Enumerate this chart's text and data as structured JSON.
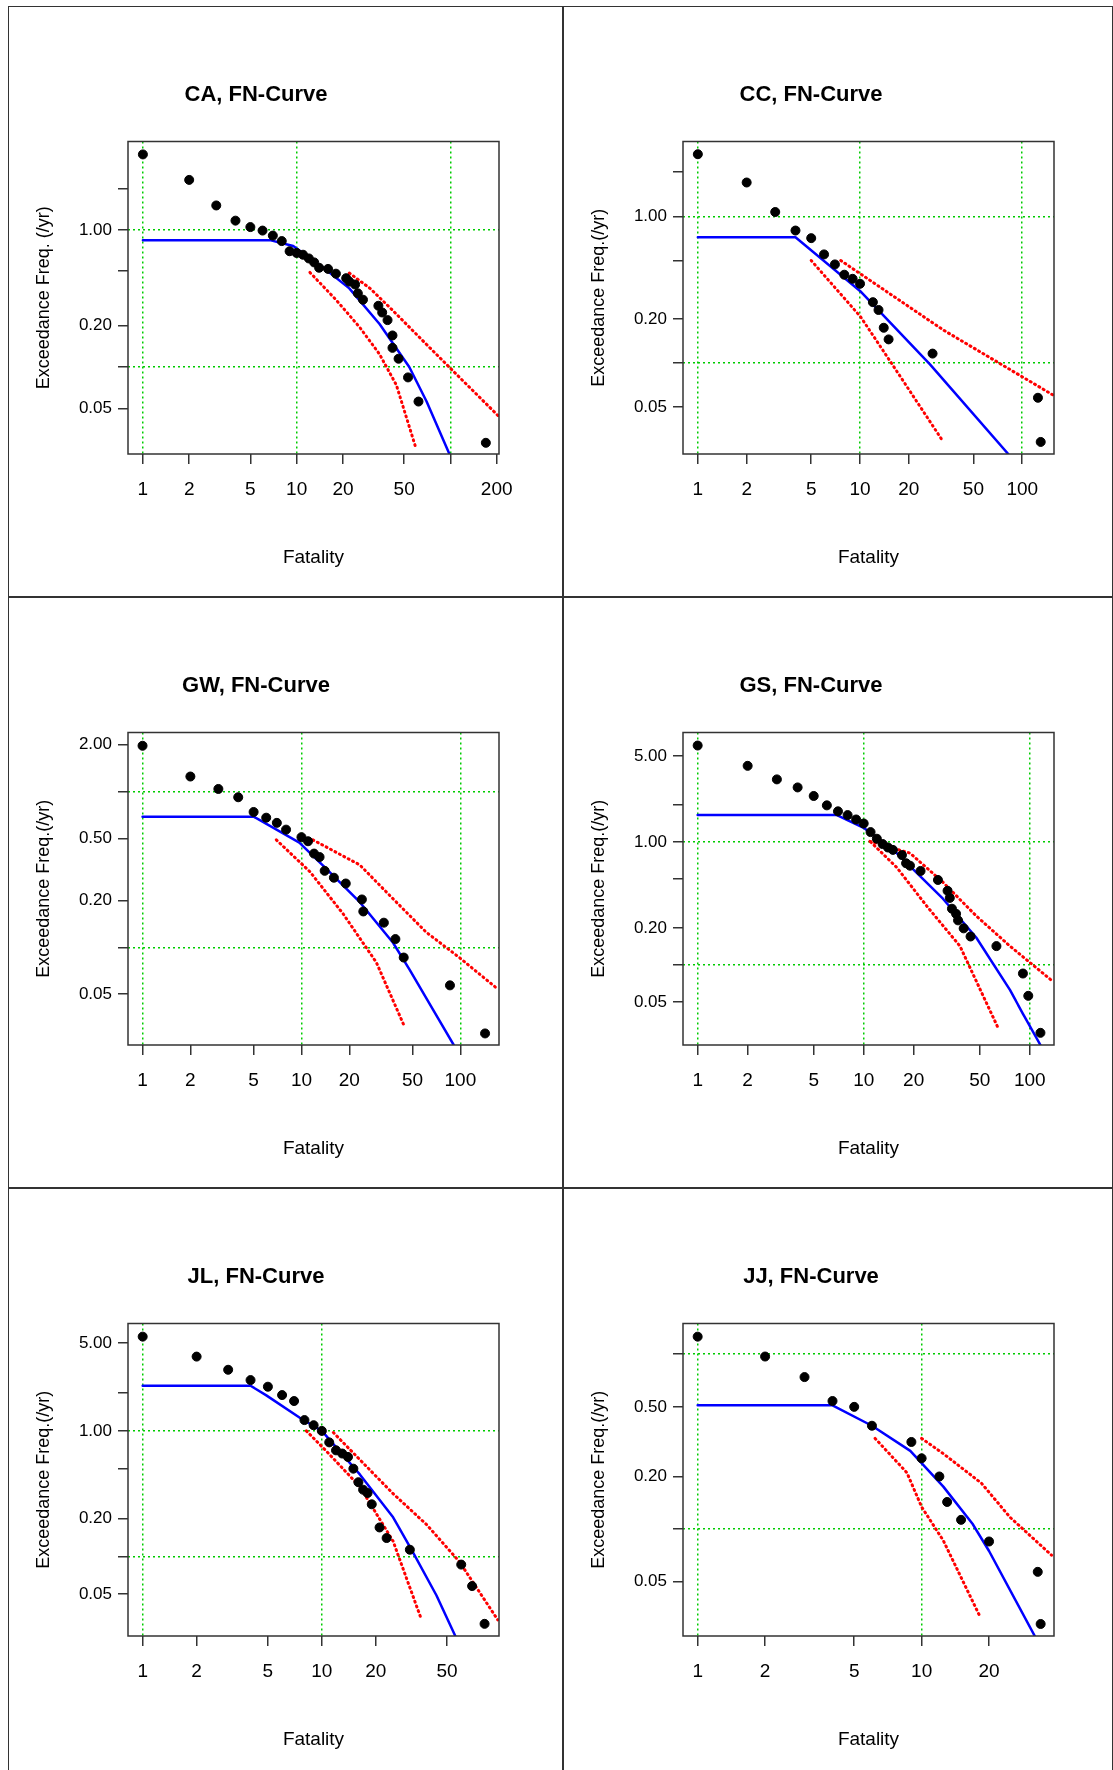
{
  "chart_data": [
    {
      "type": "scatter",
      "title": "CA, FN-Curve",
      "xlabel": "Fatality",
      "ylabel": "Exceedance Freq. (/yr)",
      "log": "xy",
      "grid": true,
      "xlim": [
        0.8,
        207
      ],
      "ylim": [
        0.0232,
        4.43
      ],
      "xticks": [
        1,
        2,
        5,
        10,
        20,
        50,
        {
          "value": 100,
          "label": null
        },
        200
      ],
      "yticks": [
        {
          "value": 0.05,
          "label": "0.05"
        },
        {
          "value": 0.1,
          "label": null
        },
        {
          "value": 0.2,
          "label": "0.20"
        },
        {
          "value": 0.5,
          "label": null
        },
        {
          "value": 1,
          "label": "1.00"
        },
        {
          "value": 2,
          "label": null
        }
      ],
      "series": [
        {
          "type": "scatter",
          "color": "#000000",
          "x": [
            1,
            2,
            3,
            4,
            5,
            6,
            7,
            8,
            9,
            10,
            11,
            12,
            13,
            14,
            16,
            18,
            21,
            22,
            24,
            25,
            27,
            34,
            36,
            39,
            42,
            42,
            46,
            53,
            62,
            170
          ],
          "values": [
            3.56,
            2.32,
            1.51,
            1.17,
            1.05,
            0.99,
            0.91,
            0.83,
            0.7,
            0.68,
            0.66,
            0.62,
            0.58,
            0.53,
            0.52,
            0.48,
            0.445,
            0.42,
            0.4,
            0.345,
            0.31,
            0.28,
            0.25,
            0.22,
            0.17,
            0.138,
            0.115,
            0.084,
            0.056,
            0.028
          ]
        },
        {
          "type": "line",
          "color": "#0000ff",
          "line_style": "solid",
          "x": [
            1,
            6.8,
            9.5,
            15.6,
            22,
            34.6,
            54,
            70,
            98.5
          ],
          "values": [
            0.84,
            0.84,
            0.765,
            0.51,
            0.375,
            0.206,
            0.1,
            0.056,
            0.0232
          ]
        },
        {
          "type": "line",
          "color": "#ff0000",
          "line_style": "dotted",
          "x": [
            22,
            30,
            42,
            70,
            99,
            205
          ],
          "values": [
            0.485,
            0.375,
            0.26,
            0.146,
            0.099,
            0.044
          ]
        },
        {
          "type": "line",
          "color": "#ff0000",
          "line_style": "dotted",
          "x": [
            12.2,
            18,
            25.7,
            34.6,
            44.5,
            59.4
          ],
          "values": [
            0.49,
            0.31,
            0.195,
            0.124,
            0.074,
            0.026
          ]
        }
      ]
    },
    {
      "type": "scatter",
      "title": "CC, FN-Curve",
      "xlabel": "Fatality",
      "ylabel": "Exceedance Freq.(/yr)",
      "log": "xy",
      "grid": true,
      "xlim": [
        0.81,
        157
      ],
      "ylim": [
        0.024,
        3.24
      ],
      "xticks": [
        1,
        2,
        5,
        10,
        20,
        50,
        100
      ],
      "yticks": [
        {
          "value": 0.05,
          "label": "0.05"
        },
        {
          "value": 0.1,
          "label": null
        },
        {
          "value": 0.2,
          "label": "0.20"
        },
        {
          "value": 0.5,
          "label": null
        },
        {
          "value": 1,
          "label": "1.00"
        },
        {
          "value": 2,
          "label": null
        }
      ],
      "series": [
        {
          "type": "scatter",
          "color": "#000000",
          "x": [
            1,
            2,
            3,
            4,
            5,
            6,
            7,
            8,
            9,
            10,
            12,
            13,
            14,
            15,
            28,
            125,
            130
          ],
          "values": [
            2.65,
            1.7,
            1.07,
            0.8,
            0.71,
            0.55,
            0.47,
            0.4,
            0.375,
            0.347,
            0.26,
            0.23,
            0.174,
            0.145,
            0.116,
            0.058,
            0.029
          ]
        },
        {
          "type": "line",
          "color": "#0000ff",
          "line_style": "solid",
          "x": [
            1,
            4,
            10,
            27,
            82
          ],
          "values": [
            0.72,
            0.72,
            0.31,
            0.098,
            0.024
          ]
        },
        {
          "type": "line",
          "color": "#ff0000",
          "line_style": "dotted",
          "x": [
            7.6,
            32.6,
            157
          ],
          "values": [
            0.5,
            0.168,
            0.06
          ]
        },
        {
          "type": "line",
          "color": "#ff0000",
          "line_style": "dotted",
          "x": [
            5,
            10.1,
            17.7,
            32
          ],
          "values": [
            0.5,
            0.206,
            0.081,
            0.03
          ]
        }
      ]
    },
    {
      "type": "scatter",
      "title": "GW, FN-Curve",
      "xlabel": "Fatality",
      "ylabel": "Exceedance Freq.(/yr)",
      "log": "xy",
      "grid": true,
      "xlim": [
        0.81,
        175
      ],
      "ylim": [
        0.0236,
        2.4
      ],
      "xticks": [
        1,
        2,
        5,
        10,
        20,
        50,
        100
      ],
      "yticks": [
        {
          "value": 0.05,
          "label": "0.05"
        },
        {
          "value": 0.1,
          "label": null
        },
        {
          "value": 0.2,
          "label": "0.20"
        },
        {
          "value": 0.5,
          "label": "0.50"
        },
        {
          "value": 1,
          "label": null
        },
        {
          "value": 2,
          "label": "2.00"
        }
      ],
      "series": [
        {
          "type": "scatter",
          "color": "#000000",
          "x": [
            1,
            2,
            3,
            4,
            5,
            6,
            7,
            8,
            10,
            11,
            12,
            13,
            14,
            16,
            19,
            24,
            24.5,
            33,
            39,
            44,
            86,
            143
          ],
          "values": [
            1.97,
            1.25,
            1.04,
            0.92,
            0.74,
            0.68,
            0.63,
            0.57,
            0.51,
            0.48,
            0.4,
            0.38,
            0.31,
            0.28,
            0.257,
            0.203,
            0.17,
            0.144,
            0.113,
            0.086,
            0.057,
            0.028
          ]
        },
        {
          "type": "line",
          "color": "#0000ff",
          "line_style": "solid",
          "x": [
            1,
            5,
            9.7,
            14.3,
            23.3,
            37.7,
            47.9,
            90.8
          ],
          "values": [
            0.69,
            0.69,
            0.47,
            0.32,
            0.195,
            0.107,
            0.072,
            0.0236
          ]
        },
        {
          "type": "line",
          "color": "#ff0000",
          "line_style": "dotted",
          "x": [
            11.8,
            23.3,
            37.7,
            61,
            98.5,
            168
          ],
          "values": [
            0.49,
            0.338,
            0.205,
            0.125,
            0.086,
            0.055
          ]
        },
        {
          "type": "line",
          "color": "#ff0000",
          "line_style": "dotted",
          "x": [
            6.95,
            11.3,
            18.3,
            29.6,
            44.5
          ],
          "values": [
            0.49,
            0.306,
            0.164,
            0.08,
            0.031
          ]
        }
      ]
    },
    {
      "type": "scatter",
      "title": "GS, FN-Curve",
      "xlabel": "Fatality",
      "ylabel": "Exceedance Freq.(/yr)",
      "log": "xy",
      "grid": true,
      "xlim": [
        0.816,
        140
      ],
      "ylim": [
        0.0223,
        7.76
      ],
      "xticks": [
        1,
        2,
        5,
        10,
        20,
        50,
        100
      ],
      "yticks": [
        {
          "value": 0.05,
          "label": "0.05"
        },
        {
          "value": 0.1,
          "label": null
        },
        {
          "value": 0.2,
          "label": "0.20"
        },
        {
          "value": 0.5,
          "label": null
        },
        {
          "value": 1,
          "label": "1.00"
        },
        {
          "value": 2,
          "label": null
        },
        {
          "value": 5,
          "label": "5.00"
        }
      ],
      "series": [
        {
          "type": "scatter",
          "color": "#000000",
          "x": [
            1,
            2,
            3,
            4,
            5,
            6,
            7,
            8,
            9,
            10,
            11,
            12,
            13,
            14,
            15,
            17,
            18,
            19,
            22,
            28,
            32,
            33,
            34,
            36,
            37,
            40,
            44,
            63,
            91,
            98,
            116
          ],
          "values": [
            6.07,
            4.15,
            3.22,
            2.77,
            2.36,
            1.98,
            1.77,
            1.65,
            1.52,
            1.41,
            1.2,
            1.06,
            0.96,
            0.9,
            0.86,
            0.78,
            0.67,
            0.64,
            0.58,
            0.49,
            0.4,
            0.35,
            0.286,
            0.26,
            0.23,
            0.198,
            0.17,
            0.142,
            0.085,
            0.056,
            0.028
          ]
        },
        {
          "type": "line",
          "color": "#0000ff",
          "line_style": "solid",
          "x": [
            1,
            6.9,
            10,
            15.8,
            30,
            47.6,
            76,
            91,
            116
          ],
          "values": [
            1.65,
            1.65,
            1.3,
            0.81,
            0.345,
            0.167,
            0.0626,
            0.04,
            0.0223
          ]
        },
        {
          "type": "line",
          "color": "#ff0000",
          "line_style": "dotted",
          "x": [
            10.9,
            19,
            30,
            47.6,
            76,
            135
          ],
          "values": [
            1.01,
            0.81,
            0.47,
            0.25,
            0.142,
            0.075
          ]
        },
        {
          "type": "line",
          "color": "#ff0000",
          "line_style": "dotted",
          "x": [
            11,
            15.8,
            24,
            38,
            65
          ],
          "values": [
            1,
            0.62,
            0.3,
            0.142,
            0.03
          ]
        }
      ]
    },
    {
      "type": "scatter",
      "title": "JL, FN-Curve",
      "xlabel": "Fatality",
      "ylabel": "Exceedance Freq.(/yr)",
      "log": "xy",
      "grid": true,
      "xlim": [
        0.828,
        97.5
      ],
      "ylim": [
        0.0232,
        7.19
      ],
      "xticks": [
        1,
        2,
        5,
        10,
        20,
        50
      ],
      "yticks": [
        {
          "value": 0.05,
          "label": "0.05"
        },
        {
          "value": 0.1,
          "label": null
        },
        {
          "value": 0.2,
          "label": "0.20"
        },
        {
          "value": 0.5,
          "label": null
        },
        {
          "value": 1,
          "label": "1.00"
        },
        {
          "value": 2,
          "label": null
        },
        {
          "value": 5,
          "label": "5.00"
        }
      ],
      "series": [
        {
          "type": "scatter",
          "color": "#000000",
          "x": [
            1,
            2,
            3,
            4,
            5,
            6,
            7,
            8,
            9,
            10,
            11,
            12,
            13,
            14,
            15,
            16,
            17,
            18,
            19,
            21,
            23,
            31,
            60,
            69,
            81
          ],
          "values": [
            5.64,
            3.91,
            3.07,
            2.54,
            2.25,
            1.93,
            1.73,
            1.22,
            1.11,
            1,
            0.81,
            0.7,
            0.66,
            0.62,
            0.5,
            0.39,
            0.34,
            0.32,
            0.26,
            0.17,
            0.14,
            0.113,
            0.086,
            0.058,
            0.029
          ]
        },
        {
          "type": "line",
          "color": "#0000ff",
          "line_style": "solid",
          "x": [
            1,
            4,
            4.9,
            7.5,
            10,
            16.3,
            25,
            32,
            43.6,
            55.6
          ],
          "values": [
            2.29,
            2.29,
            1.92,
            1.28,
            1,
            0.45,
            0.205,
            0.11,
            0.049,
            0.0232
          ]
        },
        {
          "type": "line",
          "color": "#ff0000",
          "line_style": "dotted",
          "x": [
            11.6,
            16.3,
            25,
            38.3,
            58.5,
            96
          ],
          "values": [
            0.97,
            0.59,
            0.316,
            0.18,
            0.091,
            0.0312
          ]
        },
        {
          "type": "line",
          "color": "#ff0000",
          "line_style": "dotted",
          "x": [
            8.2,
            10.6,
            16.3,
            25,
            35.8
          ],
          "values": [
            1,
            0.69,
            0.36,
            0.132,
            0.032
          ]
        }
      ]
    },
    {
      "type": "scatter",
      "title": "JJ, FN-Curve",
      "xlabel": "Fatality",
      "ylabel": "Exceedance Freq.(/yr)",
      "log": "xy",
      "grid": true,
      "xlim": [
        0.86,
        39
      ],
      "ylim": [
        0.0245,
        1.5
      ],
      "xticks": [
        1,
        2,
        5,
        10,
        20
      ],
      "yticks": [
        {
          "value": 0.05,
          "label": "0.05"
        },
        {
          "value": 0.1,
          "label": null
        },
        {
          "value": 0.2,
          "label": "0.20"
        },
        {
          "value": 0.5,
          "label": "0.50"
        },
        {
          "value": 1,
          "label": null
        }
      ],
      "series": [
        {
          "type": "scatter",
          "color": "#000000",
          "x": [
            1,
            2,
            3,
            4,
            5,
            6,
            9,
            10,
            12,
            13,
            15,
            20,
            33,
            34
          ],
          "values": [
            1.26,
            0.97,
            0.74,
            0.54,
            0.5,
            0.39,
            0.315,
            0.254,
            0.2,
            0.143,
            0.113,
            0.085,
            0.057,
            0.0287
          ]
        },
        {
          "type": "line",
          "color": "#0000ff",
          "line_style": "solid",
          "x": [
            1,
            4,
            6,
            8.9,
            12.5,
            16.9,
            20,
            32
          ],
          "values": [
            0.51,
            0.51,
            0.39,
            0.28,
            0.175,
            0.107,
            0.075,
            0.0245
          ]
        },
        {
          "type": "line",
          "color": "#ff0000",
          "line_style": "dotted",
          "x": [
            10,
            12.5,
            18.5,
            24.8,
            38
          ],
          "values": [
            0.33,
            0.27,
            0.183,
            0.117,
            0.071
          ]
        },
        {
          "type": "line",
          "color": "#ff0000",
          "line_style": "dotted",
          "x": [
            6.2,
            8.6,
            10,
            12.5,
            18.3
          ],
          "values": [
            0.33,
            0.21,
            0.134,
            0.086,
            0.0313
          ]
        }
      ]
    }
  ]
}
